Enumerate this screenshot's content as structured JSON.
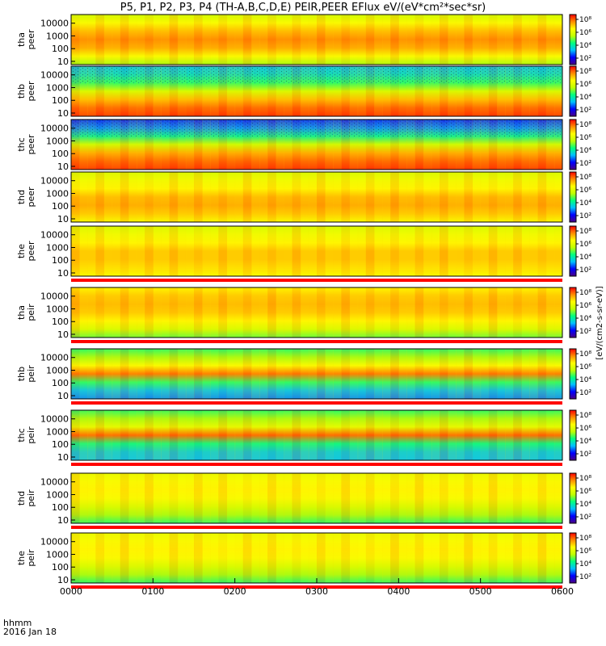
{
  "chart_data": {
    "type": "heatmap",
    "title": "P5, P1, P2, P3, P4 (TH-A,B,C,D,E) PEIR,PEER EFlux eV/(eV*cm²*sec*sr)",
    "units": "[eV/(cm2-s-sr-eV)]",
    "colormap": [
      "#4b0082",
      "#0000ff",
      "#00bfff",
      "#00ff7f",
      "#bfff00",
      "#ffff00",
      "#ff8c00",
      "#ff0000"
    ],
    "y_ticks": [
      "10",
      "100",
      "1000",
      "10000"
    ],
    "x_ticks": [
      "0000",
      "0100",
      "0200",
      "0300",
      "0400",
      "0500",
      "0600"
    ],
    "x_label": "hhmm",
    "date": "2016 Jan 18",
    "panels": [
      {
        "probe": "tha",
        "species": "peer",
        "colorbar_ticks": [
          "10²",
          "10⁴",
          "10⁶",
          "10⁸"
        ],
        "profile": [
          0.55,
          0.7,
          0.82,
          0.86,
          0.8,
          0.7,
          0.6
        ]
      },
      {
        "probe": "thb",
        "species": "peer",
        "colorbar_ticks": [
          "10²",
          "10⁴",
          "10⁶",
          "10⁸"
        ],
        "profile": [
          0.95,
          0.9,
          0.8,
          0.62,
          0.45,
          0.35,
          0.3
        ]
      },
      {
        "probe": "thc",
        "species": "peer",
        "colorbar_ticks": [
          "10²",
          "10⁴",
          "10⁶",
          "10⁸"
        ],
        "profile": [
          0.95,
          0.9,
          0.82,
          0.6,
          0.4,
          0.25,
          0.18
        ]
      },
      {
        "probe": "thd",
        "species": "peer",
        "colorbar_ticks": [
          "10²",
          "10⁴",
          "10⁶",
          "10⁸"
        ],
        "profile": [
          0.7,
          0.78,
          0.82,
          0.8,
          0.72,
          0.68,
          0.62
        ]
      },
      {
        "probe": "the",
        "species": "peer",
        "colorbar_ticks": [
          "10²",
          "10⁴",
          "10⁶",
          "10⁸"
        ],
        "profile": [
          0.7,
          0.75,
          0.78,
          0.78,
          0.72,
          0.68,
          0.62
        ]
      },
      {
        "probe": "tha",
        "species": "peir",
        "colorbar_ticks": [
          "10²",
          "10⁴",
          "10⁶",
          "10⁸"
        ],
        "profile": [
          0.5,
          0.62,
          0.72,
          0.78,
          0.8,
          0.78,
          0.72
        ]
      },
      {
        "probe": "thb",
        "species": "peir",
        "colorbar_ticks": [
          "10²",
          "10⁴",
          "10⁶",
          "10⁸"
        ],
        "profile": [
          0.25,
          0.3,
          0.45,
          0.88,
          0.7,
          0.55,
          0.45
        ]
      },
      {
        "probe": "thc",
        "species": "peir",
        "colorbar_ticks": [
          "10²",
          "10⁴",
          "10⁶",
          "10⁸"
        ],
        "profile": [
          0.3,
          0.32,
          0.42,
          0.9,
          0.65,
          0.55,
          0.45
        ]
      },
      {
        "probe": "thd",
        "species": "peir",
        "colorbar_ticks": [
          "10²",
          "10⁴",
          "10⁶",
          "10⁸"
        ],
        "profile": [
          0.45,
          0.55,
          0.62,
          0.7,
          0.72,
          0.7,
          0.66
        ]
      },
      {
        "probe": "the",
        "species": "peir",
        "colorbar_ticks": [
          "10²",
          "10⁴",
          "10⁶",
          "10⁸"
        ],
        "profile": [
          0.45,
          0.55,
          0.62,
          0.7,
          0.72,
          0.7,
          0.66
        ]
      }
    ]
  }
}
